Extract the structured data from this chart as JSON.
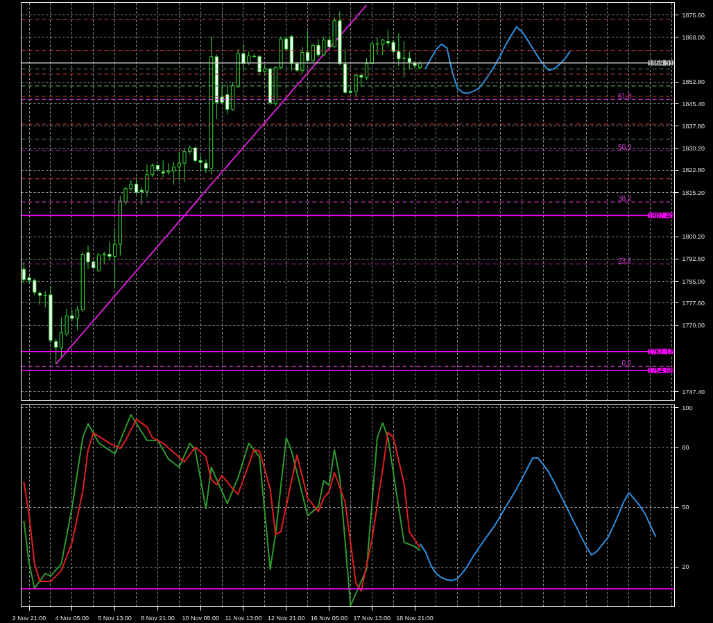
{
  "chart_data": [
    {
      "type": "candlestick",
      "color": "#33dd33",
      "grid": true,
      "tick_labels": "y",
      "ylim": [
        1744.4,
        1879.9
      ],
      "categories": [
        null,
        null,
        null,
        null,
        null,
        null,
        null,
        null,
        null,
        null,
        null,
        null,
        null,
        null,
        null,
        null,
        null,
        null,
        null,
        null,
        null,
        null,
        null,
        null,
        null,
        null,
        null,
        null,
        null,
        null,
        null,
        null,
        null,
        null,
        null,
        null,
        null,
        null,
        null,
        null,
        null,
        null,
        null,
        null,
        null,
        null,
        null,
        null,
        null,
        null,
        null,
        null,
        null,
        null,
        null,
        null,
        null,
        null,
        null,
        null,
        null,
        null,
        null,
        null,
        null,
        null,
        null,
        null,
        null,
        null,
        null,
        null,
        null,
        null,
        null,
        null,
        null,
        null,
        null,
        null,
        null,
        null,
        null,
        null,
        null,
        null,
        null,
        null,
        null,
        null,
        null,
        null,
        null,
        null,
        null,
        null,
        null,
        null,
        null,
        null,
        null,
        null,
        null,
        null,
        null,
        null,
        null,
        null,
        null,
        null,
        null,
        null,
        null,
        null,
        null,
        null,
        null,
        null,
        null,
        null,
        null,
        null
      ],
      "yticks": [
        {
          "value": 1875.6,
          "label": "1875.60"
        },
        {
          "value": 1868.0,
          "label": "1868.00"
        },
        {
          "value": 1852.8,
          "label": "1852.80"
        },
        {
          "value": 1845.4,
          "label": "1845.40"
        },
        {
          "value": 1837.8,
          "label": "1837.80"
        },
        {
          "value": 1830.2,
          "label": "1830.20"
        },
        {
          "value": 1822.8,
          "label": "1822.80"
        },
        {
          "value": 1815.2,
          "label": "1815.20"
        },
        {
          "value": 1800.2,
          "label": "1800.20"
        },
        {
          "value": 1792.6,
          "label": "1792.60"
        },
        {
          "value": 1785.0,
          "label": "1785.00"
        },
        {
          "value": 1777.6,
          "label": "1777.60"
        },
        {
          "value": 1770.0,
          "label": "1770.00"
        },
        {
          "value": 1747.4,
          "label": "1747.40"
        }
      ],
      "ohlc": [
        [
          1789.1,
          1791.6,
          1784.3,
          1785.6
        ],
        [
          1786.2,
          1786.9,
          1784.3,
          1785.4
        ],
        [
          1785.3,
          1786.0,
          1780.4,
          1781.3
        ],
        [
          1781.0,
          1781.7,
          1777.0,
          1780.2
        ],
        [
          1780.3,
          1781.7,
          1776.1,
          1780.2
        ],
        [
          1780.4,
          1783.5,
          1764.1,
          1764.9
        ],
        [
          1764.5,
          1765.4,
          1756.9,
          1762.6
        ],
        [
          1762.3,
          1772.7,
          1759.3,
          1767.5
        ],
        [
          1767.1,
          1775.7,
          1766.2,
          1773.3
        ],
        [
          1773.3,
          1775.3,
          1771.4,
          1772.4
        ],
        [
          1772.4,
          1776.6,
          1768.4,
          1775.3
        ],
        [
          1775.3,
          1795.1,
          1774.4,
          1794.2
        ],
        [
          1794.8,
          1797.2,
          1789.1,
          1791.6
        ],
        [
          1791.6,
          1792.1,
          1789.5,
          1789.6
        ],
        [
          1788.6,
          1794.6,
          1788.2,
          1794.0
        ],
        [
          1794.0,
          1795.1,
          1790.8,
          1794.3
        ],
        [
          1794.2,
          1798.5,
          1792.1,
          1793.5
        ],
        [
          1793.5,
          1802.8,
          1783.0,
          1797.6
        ],
        [
          1797.6,
          1814.0,
          1793.8,
          1812.3
        ],
        [
          1811.9,
          1817.0,
          1811.0,
          1816.6
        ],
        [
          1816.6,
          1819.6,
          1815.7,
          1818.1
        ],
        [
          1818.1,
          1820.5,
          1814.5,
          1815.3
        ],
        [
          1816.0,
          1817.0,
          1811.0,
          1815.5
        ],
        [
          1815.7,
          1824.8,
          1813.6,
          1821.3
        ],
        [
          1821.3,
          1825.2,
          1820.5,
          1824.4
        ],
        [
          1824.4,
          1824.8,
          1822.2,
          1823.1
        ],
        [
          1822.2,
          1826.1,
          1820.5,
          1821.8
        ],
        [
          1822.2,
          1825.2,
          1821.3,
          1822.6
        ],
        [
          1822.6,
          1825.6,
          1817.9,
          1823.9
        ],
        [
          1823.9,
          1829.1,
          1819.2,
          1825.2
        ],
        [
          1825.2,
          1830.4,
          1818.8,
          1829.1
        ],
        [
          1829.1,
          1831.2,
          1828.2,
          1830.4
        ],
        [
          1830.4,
          1830.8,
          1825.6,
          1826.1
        ],
        [
          1826.1,
          1827.8,
          1822.6,
          1825.5
        ],
        [
          1825.2,
          1826.5,
          1821.8,
          1823.5
        ],
        [
          1823.5,
          1868.3,
          1821.3,
          1861.4
        ],
        [
          1861.4,
          1862.2,
          1840.3,
          1845.9
        ],
        [
          1847.7,
          1851.9,
          1845.5,
          1845.9
        ],
        [
          1848.5,
          1852.0,
          1841.9,
          1843.5
        ],
        [
          1843.5,
          1852.8,
          1843.1,
          1851.6
        ],
        [
          1851.2,
          1864.0,
          1850.8,
          1862.5
        ],
        [
          1862.5,
          1865.6,
          1856.7,
          1859.1
        ],
        [
          1859.4,
          1863.2,
          1858.6,
          1861.7
        ],
        [
          1861.5,
          1862.5,
          1860.9,
          1861.6
        ],
        [
          1861.5,
          1862.1,
          1855.1,
          1856.3
        ],
        [
          1856.4,
          1859.0,
          1855.1,
          1857.3
        ],
        [
          1857.3,
          1857.8,
          1845.0,
          1845.8
        ],
        [
          1845.4,
          1858.2,
          1844.6,
          1857.7
        ],
        [
          1857.7,
          1868.3,
          1857.4,
          1867.5
        ],
        [
          1867.5,
          1868.3,
          1863.2,
          1864.0
        ],
        [
          1868.3,
          1868.7,
          1856.7,
          1859.1
        ],
        [
          1859.1,
          1859.7,
          1856.3,
          1856.8
        ],
        [
          1856.7,
          1864.8,
          1855.9,
          1862.9
        ],
        [
          1862.9,
          1870.2,
          1859.8,
          1860.1
        ],
        [
          1860.1,
          1865.9,
          1859.4,
          1865.3
        ],
        [
          1865.3,
          1867.5,
          1861.3,
          1862.1
        ],
        [
          1862.1,
          1868.3,
          1861.7,
          1867.1
        ],
        [
          1867.1,
          1868.3,
          1864.4,
          1864.8
        ],
        [
          1864.8,
          1874.9,
          1864.4,
          1873.7
        ],
        [
          1873.7,
          1876.8,
          1858.6,
          1859.0
        ],
        [
          1859.0,
          1864.0,
          1848.9,
          1849.3
        ],
        [
          1849.7,
          1851.6,
          1848.9,
          1849.3
        ],
        [
          1849.7,
          1855.5,
          1848.1,
          1855.1
        ],
        [
          1855.1,
          1855.9,
          1851.2,
          1854.5
        ],
        [
          1854.3,
          1860.9,
          1853.5,
          1859.1
        ],
        [
          1859.1,
          1866.3,
          1859.0,
          1865.8
        ],
        [
          1865.7,
          1867.9,
          1862.1,
          1865.8
        ],
        [
          1865.6,
          1867.5,
          1862.1,
          1867.1
        ],
        [
          1866.6,
          1870.6,
          1864.8,
          1866.1
        ],
        [
          1866.3,
          1867.1,
          1862.8,
          1863.2
        ],
        [
          1863.2,
          1869.4,
          1858.2,
          1860.7
        ],
        [
          1860.9,
          1866.7,
          1854.3,
          1860.9
        ],
        [
          1860.9,
          1863.2,
          1857.0,
          1859.6
        ],
        [
          1859.4,
          1860.1,
          1857.4,
          1858.4
        ],
        [
          1857.7,
          1860.1,
          1857.3,
          1859.3
        ],
        null,
        null,
        null,
        null,
        null,
        null,
        null,
        null,
        null,
        null,
        null,
        null,
        null,
        null,
        null,
        null,
        null,
        null,
        null,
        null,
        null,
        null,
        null,
        null,
        null,
        null,
        null,
        null,
        null,
        null,
        null,
        null,
        null,
        null,
        null,
        null,
        null,
        null,
        null,
        null,
        null,
        null,
        null,
        null,
        null,
        null,
        null
      ],
      "series": [
        {
          "type": "line",
          "color": "#d020d0",
          "values": [
            null,
            null,
            null,
            null,
            null,
            null,
            1756.9,
            1759.0,
            1761.1,
            1763.2,
            1765.3,
            1767.4,
            1769.5,
            1771.6,
            1773.7,
            1775.8,
            1778.0,
            1780.1,
            1782.2,
            1784.3,
            1786.4,
            1788.5,
            1790.6,
            1792.7,
            1794.8,
            1796.9,
            1799.0,
            1801.1,
            1803.2,
            1805.3,
            1807.4,
            1809.5,
            1811.6,
            1813.8,
            1815.9,
            1818.0,
            1820.1,
            1822.2,
            1824.3,
            1826.4,
            1828.5,
            1830.6,
            1832.7,
            1834.8,
            1836.9,
            1839.0,
            1841.1,
            1843.2,
            1845.3,
            1847.5,
            1849.6,
            1851.7,
            1853.8,
            1855.9,
            1858.0,
            1860.1,
            1862.2,
            1864.3,
            1866.4,
            1868.5,
            1870.6,
            1872.7,
            1874.8,
            1876.9,
            1879.0,
            null,
            null,
            null,
            null,
            null,
            null,
            null,
            null,
            null,
            null,
            null,
            null,
            null,
            null,
            null,
            null,
            null,
            null,
            null,
            null,
            null,
            null,
            null,
            null,
            null,
            null,
            null,
            null,
            null,
            null,
            null,
            null,
            null,
            null,
            null,
            null,
            null,
            null,
            null,
            null,
            null,
            null,
            null,
            null,
            null,
            null,
            null,
            null,
            null,
            null,
            null,
            null,
            null,
            null,
            null,
            null,
            null
          ]
        },
        {
          "type": "line",
          "color": "#3090e0",
          "values": [
            null,
            null,
            null,
            null,
            null,
            null,
            null,
            null,
            null,
            null,
            null,
            null,
            null,
            null,
            null,
            null,
            null,
            null,
            null,
            null,
            null,
            null,
            null,
            null,
            null,
            null,
            null,
            null,
            null,
            null,
            null,
            null,
            null,
            null,
            null,
            null,
            null,
            null,
            null,
            null,
            null,
            null,
            null,
            null,
            null,
            null,
            null,
            null,
            null,
            null,
            null,
            null,
            null,
            null,
            null,
            null,
            null,
            null,
            null,
            null,
            null,
            null,
            null,
            null,
            null,
            null,
            null,
            null,
            null,
            null,
            null,
            null,
            null,
            null,
            null,
            1857.4,
            1860.8,
            1863.9,
            1865.7,
            1864.4,
            1856.3,
            1850.6,
            1849.2,
            1849.0,
            1849.7,
            1850.7,
            1853.1,
            1855.7,
            1858.6,
            1861.9,
            1865.5,
            1868.6,
            1871.6,
            1870.0,
            1867.3,
            1864.3,
            1861.4,
            1858.9,
            1856.8,
            1857.3,
            1858.8,
            1860.6,
            1863.3,
            null,
            null,
            null,
            null,
            null,
            null,
            null,
            null,
            null,
            null,
            null,
            null,
            null,
            null,
            null,
            null,
            null,
            null,
            null
          ]
        }
      ],
      "annotations": [
        {
          "text": "61.8",
          "y": 1846.9
        },
        {
          "text": "50.0",
          "y": 1829.5
        },
        {
          "text": "38.2",
          "y": 1812.0
        },
        {
          "text": "23.6",
          "y": 1790.9
        },
        {
          "text": "0.0",
          "y": 1756.0
        }
      ],
      "ref_lines": [
        {
          "axis": "y",
          "value": 1874.1,
          "color": "#a83232",
          "line_style": "dashed"
        },
        {
          "axis": "y",
          "value": 1863.6,
          "color": "#a83232",
          "line_style": "dashed"
        },
        {
          "axis": "y",
          "value": 1855.5,
          "color": "#a83232",
          "line_style": "dashed"
        },
        {
          "axis": "y",
          "value": 1848.0,
          "color": "#a83232",
          "line_style": "dashed"
        },
        {
          "axis": "y",
          "value": 1838.5,
          "color": "#a83232",
          "line_style": "dashed"
        },
        {
          "axis": "y",
          "value": 1819.9,
          "color": "#a83232",
          "line_style": "dashed"
        },
        {
          "axis": "y",
          "value": 1857.3,
          "color": "#4f9a4f",
          "line_style": "dashed"
        },
        {
          "axis": "y",
          "value": 1851.5,
          "color": "#4f9a4f",
          "line_style": "dashed"
        },
        {
          "axis": "y",
          "value": 1833.4,
          "color": "#4f9a4f",
          "line_style": "dashed"
        },
        {
          "axis": "y",
          "value": 1846.9,
          "color": "#c030c0",
          "line_style": "dashed"
        },
        {
          "axis": "y",
          "value": 1829.5,
          "color": "#c030c0",
          "line_style": "dashed"
        },
        {
          "axis": "y",
          "value": 1812.0,
          "color": "#c030c0",
          "line_style": "dashed"
        },
        {
          "axis": "y",
          "value": 1790.9,
          "color": "#c030c0",
          "line_style": "dashed"
        },
        {
          "axis": "y",
          "value": 1756.0,
          "color": "#c030c0",
          "line_style": "dashed"
        },
        {
          "axis": "y",
          "value": 1859.31,
          "label": "1859.31",
          "color": "#c0c0c0",
          "line_style": "solid"
        },
        {
          "axis": "y",
          "value": 1807.4,
          "label": "1807.40",
          "color": "#ff00ff",
          "line_style": "solid"
        },
        {
          "axis": "y",
          "value": 1761.12,
          "label": "1761.12",
          "color": "#ff00ff",
          "line_style": "solid"
        },
        {
          "axis": "y",
          "value": 1754.68,
          "label": "1754.68",
          "color": "#ff00ff",
          "line_style": "solid"
        }
      ]
    },
    {
      "type": "line",
      "grid": true,
      "ylim": [
        0,
        101.5
      ],
      "yticks": [
        100,
        80,
        50,
        20
      ],
      "categories": [
        null,
        "2 Nov 21:00",
        null,
        null,
        null,
        null,
        null,
        null,
        null,
        "4 Nov 05:00",
        null,
        null,
        null,
        null,
        null,
        null,
        null,
        "5 Nov 13:00",
        null,
        null,
        null,
        null,
        null,
        null,
        null,
        "8 Nov 21:00",
        null,
        null,
        null,
        null,
        null,
        null,
        null,
        "10 Nov 05:00",
        null,
        null,
        null,
        null,
        null,
        null,
        null,
        "11 Nov 13:00",
        null,
        null,
        null,
        null,
        null,
        null,
        null,
        "12 Nov 21:00",
        null,
        null,
        null,
        null,
        null,
        null,
        null,
        "16 Nov 05:00",
        null,
        null,
        null,
        null,
        null,
        null,
        null,
        "17 Nov 13:00",
        null,
        null,
        null,
        null,
        null,
        null,
        null,
        "18 Nov 21:00",
        null,
        null,
        null,
        null,
        null,
        null,
        null,
        null,
        null,
        null,
        null,
        null,
        null,
        null,
        null,
        null,
        null,
        null,
        null,
        null,
        null,
        null,
        null,
        null,
        null,
        null,
        null,
        null,
        null,
        null,
        null,
        null,
        null,
        null,
        null,
        null,
        null,
        null,
        null,
        null,
        null,
        null,
        null,
        null,
        null,
        null,
        null,
        null
      ],
      "series": [
        {
          "color": "#2e9a2e",
          "values": [
            43.1,
            21.5,
            9.3,
            13.0,
            16.7,
            15.4,
            18.5,
            21.5,
            35.7,
            49.8,
            67.4,
            85.0,
            92.0,
            87.2,
            82.3,
            80.5,
            78.7,
            76.9,
            83.4,
            90.0,
            96.5,
            92.2,
            87.9,
            83.6,
            83.6,
            83.6,
            78.9,
            74.2,
            72.2,
            70.1,
            76.2,
            82.2,
            78.9,
            64.1,
            49.2,
            70.1,
            64.0,
            57.9,
            51.9,
            58.4,
            64.8,
            73.5,
            82.2,
            78.9,
            75.5,
            47.2,
            18.8,
            36.3,
            60.7,
            85.0,
            78.2,
            67.4,
            56.6,
            45.8,
            48.0,
            50.2,
            63.3,
            61.0,
            78.9,
            64.8,
            32.7,
            0.5,
            6.6,
            12.7,
            18.8,
            51.9,
            85.0,
            92.4,
            85.0,
            67.4,
            49.9,
            32.3,
            31.3,
            30.3,
            28.2,
            null,
            null,
            null,
            null,
            null,
            null,
            null,
            null,
            null,
            null,
            null,
            null,
            null,
            null,
            null,
            null,
            null,
            null,
            null,
            null,
            null,
            null,
            null,
            null,
            null,
            null,
            null,
            null,
            null,
            null,
            null,
            null,
            null,
            null,
            null,
            null,
            null,
            null,
            null,
            null,
            null,
            null,
            null,
            null,
            null,
            null,
            null
          ]
        },
        {
          "color": "#e02020",
          "values": [
            62.7,
            45.8,
            21.5,
            12.7,
            12.7,
            12.7,
            15.4,
            18.1,
            25.2,
            32.3,
            45.1,
            57.9,
            78.9,
            87.4,
            85.6,
            83.9,
            82.2,
            80.9,
            79.6,
            83.6,
            88.9,
            94.2,
            92.3,
            90.4,
            85.0,
            83.6,
            82.2,
            79.9,
            77.5,
            75.2,
            72.8,
            76.5,
            80.2,
            77.9,
            75.5,
            64.0,
            61.3,
            66.0,
            62.7,
            59.3,
            56.6,
            64.0,
            71.5,
            78.9,
            78.2,
            68.8,
            59.3,
            36.3,
            37.7,
            50.5,
            63.4,
            76.2,
            65.4,
            54.6,
            51.2,
            47.8,
            54.6,
            57.9,
            67.4,
            60.0,
            52.5,
            32.3,
            12.0,
            7.9,
            20.8,
            33.6,
            51.2,
            68.8,
            87.7,
            85.0,
            73.5,
            62.0,
            37.7,
            33.7,
            29.6,
            null,
            null,
            null,
            null,
            null,
            null,
            null,
            null,
            null,
            null,
            null,
            null,
            null,
            null,
            null,
            null,
            null,
            null,
            null,
            null,
            null,
            null,
            null,
            null,
            null,
            null,
            null,
            null,
            null,
            null,
            null,
            null,
            null,
            null,
            null,
            null,
            null,
            null,
            null,
            null,
            null,
            null,
            null,
            null,
            null,
            null,
            null
          ]
        },
        {
          "color": "#3090e0",
          "values": [
            null,
            null,
            null,
            null,
            null,
            null,
            null,
            null,
            null,
            null,
            null,
            null,
            null,
            null,
            null,
            null,
            null,
            null,
            null,
            null,
            null,
            null,
            null,
            null,
            null,
            null,
            null,
            null,
            null,
            null,
            null,
            null,
            null,
            null,
            null,
            null,
            null,
            null,
            null,
            null,
            null,
            null,
            null,
            null,
            null,
            null,
            null,
            null,
            null,
            null,
            null,
            null,
            null,
            null,
            null,
            null,
            null,
            null,
            null,
            null,
            null,
            null,
            null,
            null,
            null,
            null,
            null,
            null,
            null,
            null,
            null,
            null,
            null,
            null,
            31.6,
            27.6,
            20.8,
            16.6,
            14.6,
            13.5,
            13.2,
            14.2,
            17.3,
            21.1,
            25.7,
            29.7,
            33.5,
            37.3,
            41.1,
            45.6,
            50.2,
            54.7,
            59.2,
            64.3,
            69.5,
            74.7,
            74.8,
            71.4,
            67.7,
            62.7,
            57.3,
            51.9,
            46.5,
            41.1,
            35.7,
            30.3,
            26.0,
            27.8,
            31.2,
            34.5,
            40.0,
            46.1,
            52.7,
            57.3,
            54.1,
            50.8,
            46.7,
            40.9,
            35.1,
            null,
            null,
            null
          ]
        }
      ],
      "ref_lines": [
        {
          "axis": "y",
          "value": 9,
          "color": "#ff00ff",
          "line_style": "solid"
        }
      ]
    }
  ]
}
